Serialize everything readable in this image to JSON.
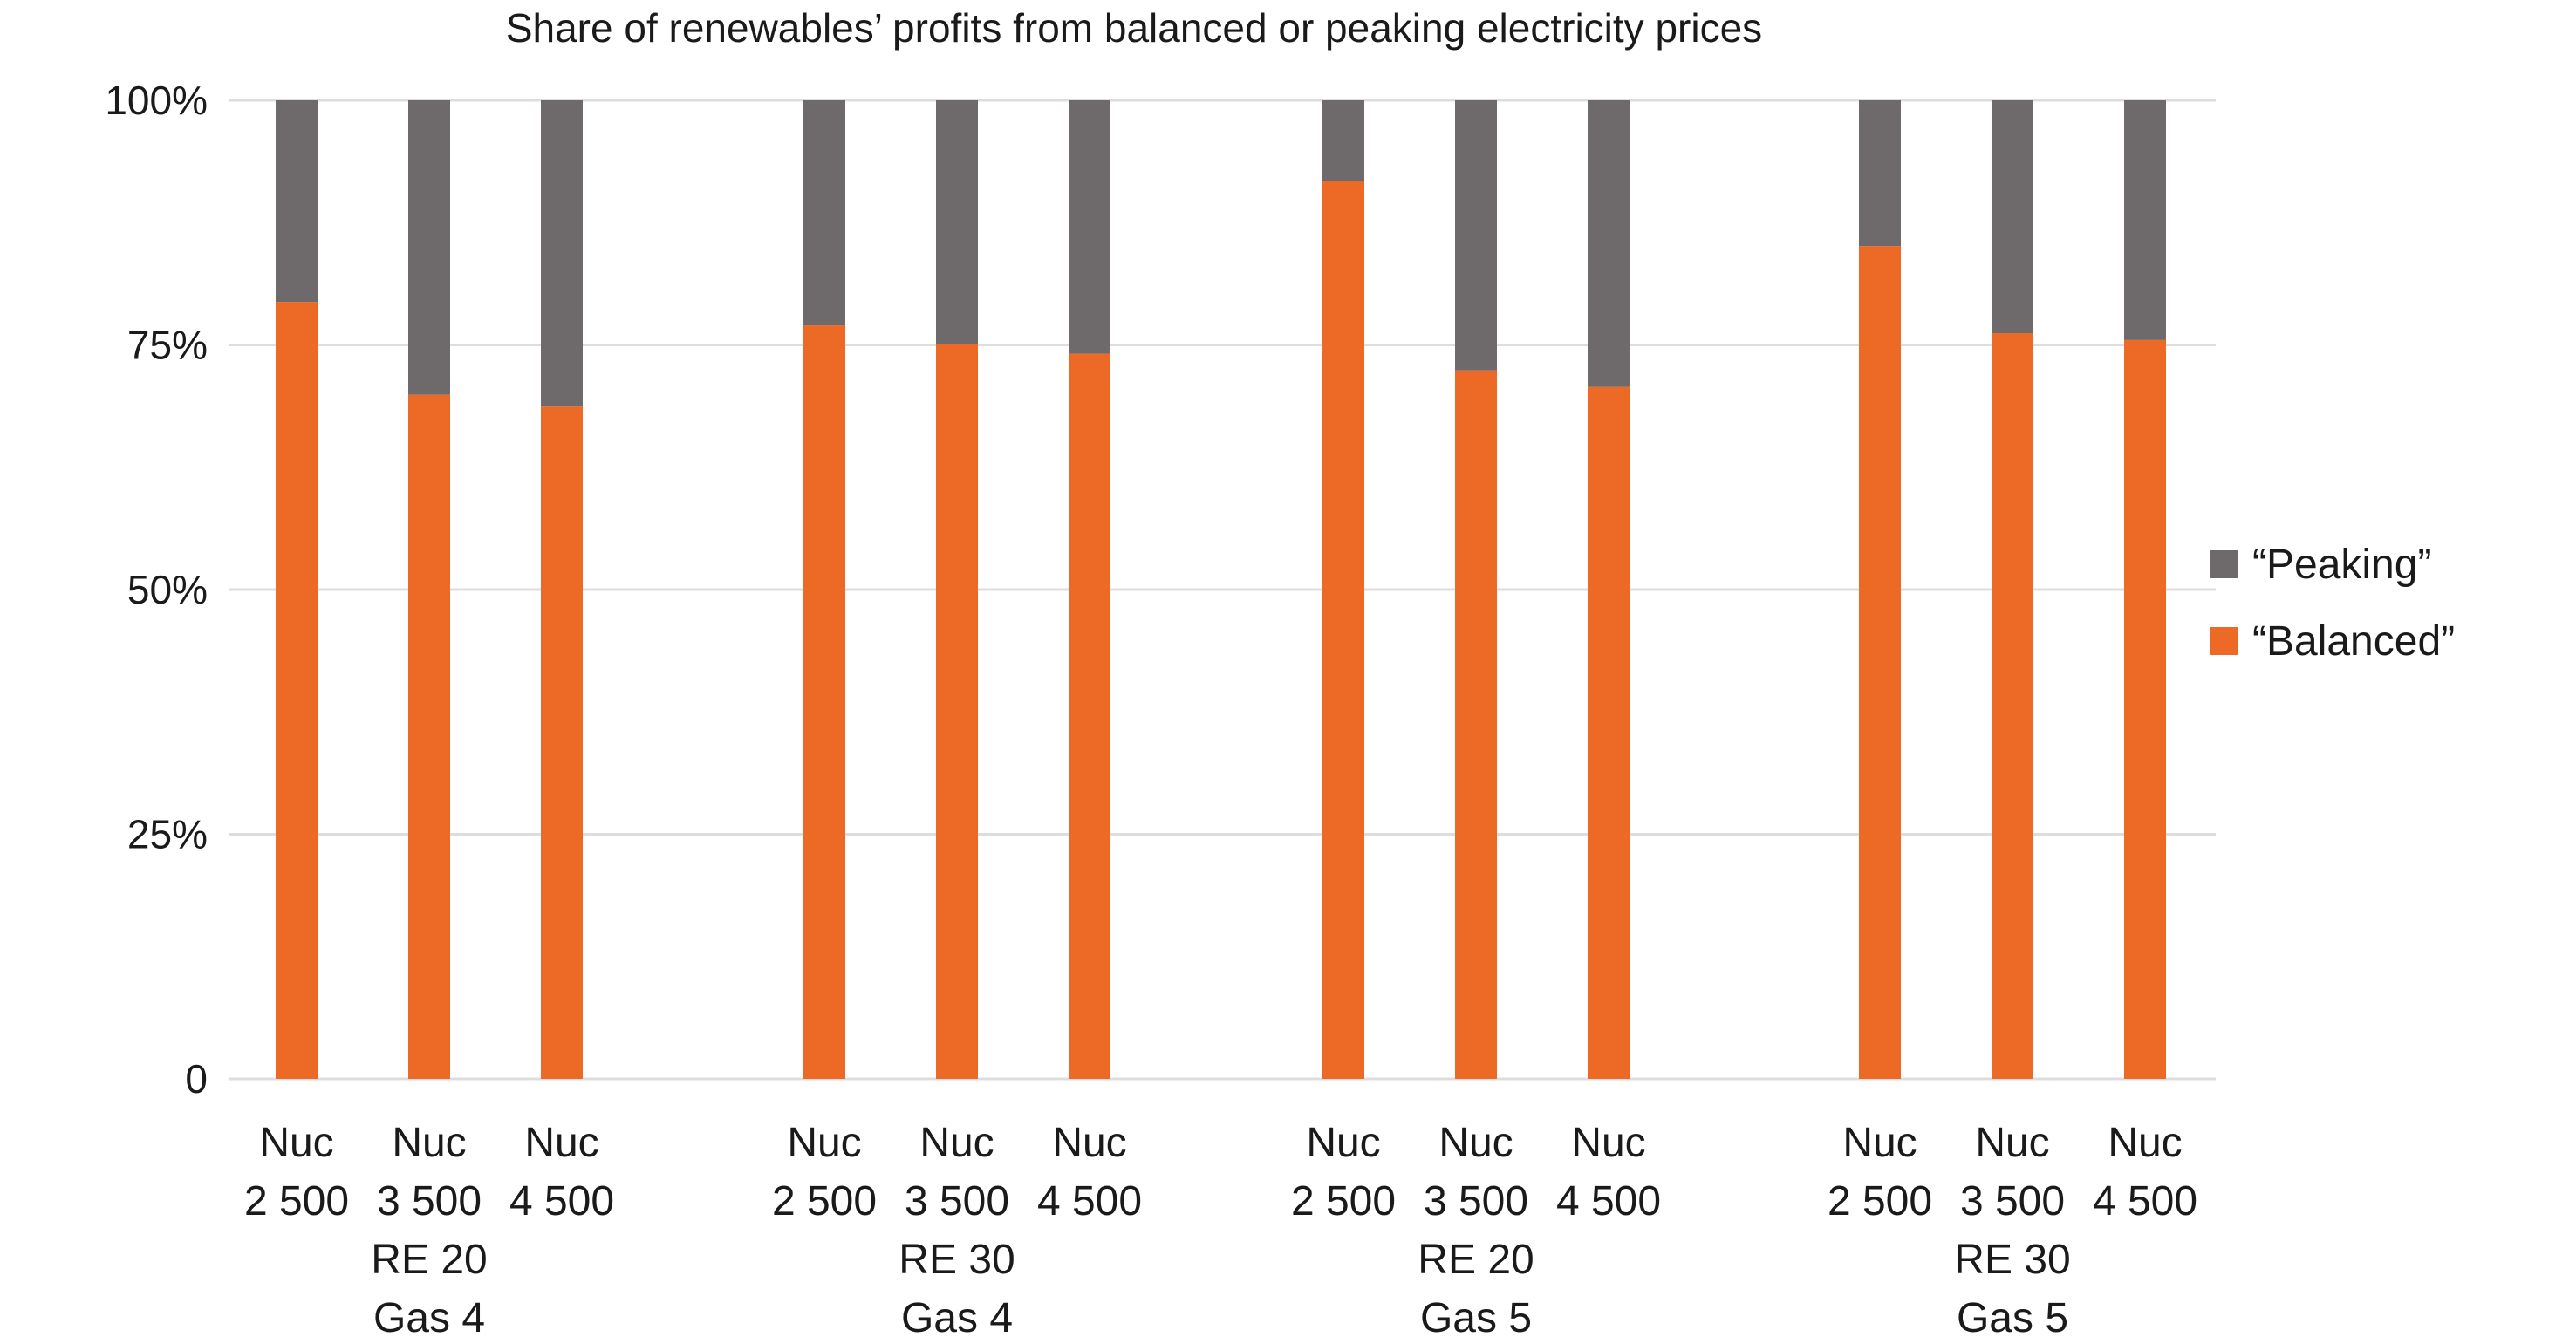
{
  "chart_data": {
    "type": "bar",
    "stacked": true,
    "title": "Share of renewables’ profits from balanced or peaking electricity prices",
    "xlabel": "",
    "ylabel": "",
    "ylim": [
      0,
      100
    ],
    "yticks": [
      {
        "value": 0,
        "label": "0"
      },
      {
        "value": 25,
        "label": "25%"
      },
      {
        "value": 50,
        "label": "50%"
      },
      {
        "value": 75,
        "label": "75%"
      },
      {
        "value": 100,
        "label": "100%"
      }
    ],
    "grid": true,
    "legend_position": "right",
    "groups": [
      {
        "line1": "RE 20",
        "line2": "Gas 4"
      },
      {
        "line1": "RE 30",
        "line2": "Gas 4"
      },
      {
        "line1": "RE 20",
        "line2": "Gas 5"
      },
      {
        "line1": "RE 30",
        "line2": "Gas 5"
      }
    ],
    "categories": [
      {
        "group": 0,
        "line1": "Nuc",
        "line2": "2 500"
      },
      {
        "group": 0,
        "line1": "Nuc",
        "line2": "3 500"
      },
      {
        "group": 0,
        "line1": "Nuc",
        "line2": "4 500"
      },
      {
        "group": 1,
        "line1": "Nuc",
        "line2": "2 500"
      },
      {
        "group": 1,
        "line1": "Nuc",
        "line2": "3 500"
      },
      {
        "group": 1,
        "line1": "Nuc",
        "line2": "4 500"
      },
      {
        "group": 2,
        "line1": "Nuc",
        "line2": "2 500"
      },
      {
        "group": 2,
        "line1": "Nuc",
        "line2": "3 500"
      },
      {
        "group": 2,
        "line1": "Nuc",
        "line2": "4 500"
      },
      {
        "group": 3,
        "line1": "Nuc",
        "line2": "2 500"
      },
      {
        "group": 3,
        "line1": "Nuc",
        "line2": "3 500"
      },
      {
        "group": 3,
        "line1": "Nuc",
        "line2": "4 500"
      }
    ],
    "series": [
      {
        "name": "“Balanced”",
        "color": "#ec6a26",
        "values": [
          79.4,
          69.9,
          68.7,
          77.0,
          75.1,
          74.1,
          91.8,
          72.4,
          70.7,
          85.1,
          76.2,
          75.5
        ]
      },
      {
        "name": "“Peaking”",
        "color": "#6e6a6b",
        "values": [
          20.6,
          30.1,
          31.3,
          23.0,
          24.9,
          25.9,
          8.2,
          27.6,
          29.3,
          14.9,
          23.8,
          24.5
        ]
      }
    ],
    "legend": [
      {
        "name": "“Peaking”",
        "color": "#6e6a6b"
      },
      {
        "name": "“Balanced”",
        "color": "#ec6a26"
      }
    ]
  }
}
